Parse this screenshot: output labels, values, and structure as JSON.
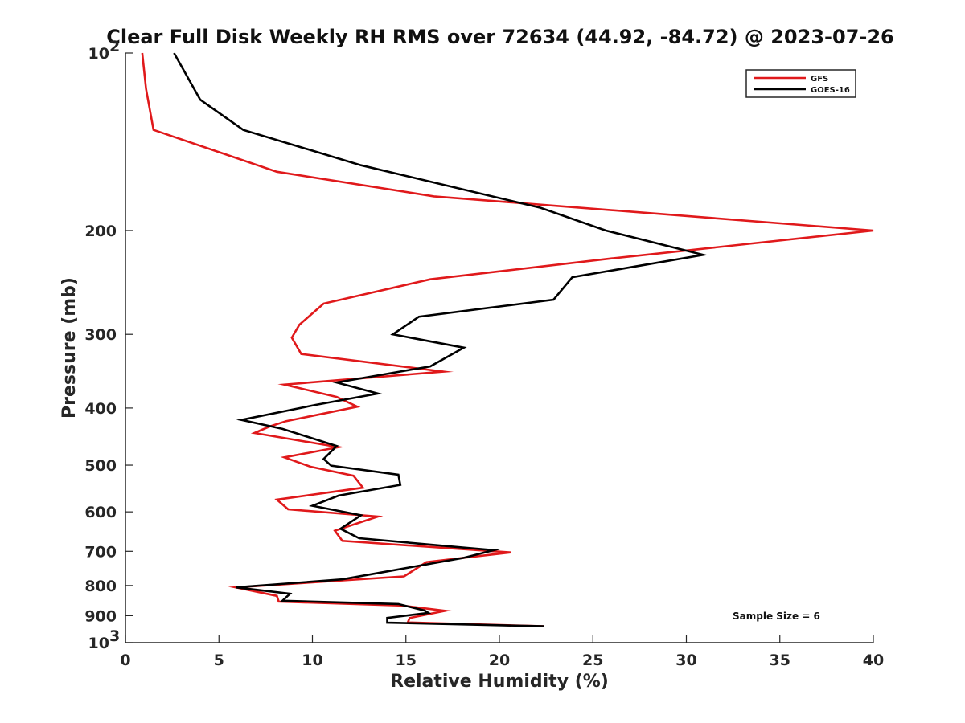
{
  "chart_data": {
    "type": "line",
    "title": "Clear Full Disk Weekly RH RMS over 72634 (44.92, -84.72) @ 2023-07-26",
    "xlabel": "Relative Humidity (%)",
    "ylabel": "Pressure (mb)",
    "xlim": [
      0,
      40
    ],
    "ylim": [
      100,
      1000
    ],
    "yscale": "log",
    "yreversed": true,
    "xticks": [
      0,
      5,
      10,
      15,
      20,
      25,
      30,
      35,
      40
    ],
    "xtick_labels": [
      "0",
      "5",
      "10",
      "15",
      "20",
      "25",
      "30",
      "35",
      "40"
    ],
    "yticks": [
      {
        "value": 100,
        "base": "10",
        "exp": "2"
      },
      {
        "value": 200,
        "base": "200",
        "exp": ""
      },
      {
        "value": 300,
        "base": "300",
        "exp": ""
      },
      {
        "value": 400,
        "base": "400",
        "exp": ""
      },
      {
        "value": 500,
        "base": "500",
        "exp": ""
      },
      {
        "value": 600,
        "base": "600",
        "exp": ""
      },
      {
        "value": 700,
        "base": "700",
        "exp": ""
      },
      {
        "value": 800,
        "base": "800",
        "exp": ""
      },
      {
        "value": 900,
        "base": "900",
        "exp": ""
      },
      {
        "value": 1000,
        "base": "10",
        "exp": "3"
      }
    ],
    "legend_position": "top-right",
    "series": [
      {
        "name": "GFS",
        "color": "#e0191b",
        "points": [
          [
            0.9,
            100
          ],
          [
            1.1,
            115
          ],
          [
            1.5,
            135
          ],
          [
            8.1,
            159
          ],
          [
            16.5,
            175
          ],
          [
            40.0,
            200
          ],
          [
            26.0,
            223
          ],
          [
            16.3,
            242
          ],
          [
            10.6,
            266
          ],
          [
            9.3,
            289
          ],
          [
            8.9,
            304
          ],
          [
            9.4,
            324
          ],
          [
            17.0,
            347
          ],
          [
            8.5,
            365
          ],
          [
            11.3,
            383
          ],
          [
            12.4,
            398
          ],
          [
            8.6,
            421
          ],
          [
            7.7,
            430
          ],
          [
            6.9,
            441
          ],
          [
            11.4,
            466
          ],
          [
            8.5,
            485
          ],
          [
            9.9,
            503
          ],
          [
            12.2,
            521
          ],
          [
            12.7,
            546
          ],
          [
            8.1,
            572
          ],
          [
            8.7,
            594
          ],
          [
            13.5,
            611
          ],
          [
            11.2,
            646
          ],
          [
            11.6,
            672
          ],
          [
            20.6,
            703
          ],
          [
            16.1,
            730
          ],
          [
            14.9,
            772
          ],
          [
            5.9,
            806
          ],
          [
            8.1,
            833
          ],
          [
            8.2,
            852
          ],
          [
            14.8,
            865
          ],
          [
            17.1,
            883
          ],
          [
            15.2,
            908
          ],
          [
            15.1,
            924
          ],
          [
            22.4,
            938
          ]
        ]
      },
      {
        "name": "GOES-16",
        "color": "#000000",
        "points": [
          [
            2.6,
            100
          ],
          [
            4.0,
            120
          ],
          [
            6.3,
            135
          ],
          [
            12.6,
            155
          ],
          [
            22.2,
            183
          ],
          [
            25.7,
            200
          ],
          [
            30.9,
            220
          ],
          [
            23.9,
            240
          ],
          [
            22.9,
            262
          ],
          [
            15.7,
            280
          ],
          [
            14.3,
            300
          ],
          [
            18.1,
            316
          ],
          [
            16.3,
            340
          ],
          [
            11.3,
            362
          ],
          [
            13.5,
            378
          ],
          [
            10.2,
            395
          ],
          [
            6.2,
            419
          ],
          [
            8.4,
            434
          ],
          [
            11.3,
            464
          ],
          [
            10.6,
            488
          ],
          [
            11.0,
            501
          ],
          [
            14.6,
            519
          ],
          [
            14.7,
            540
          ],
          [
            11.4,
            563
          ],
          [
            10.0,
            586
          ],
          [
            12.6,
            608
          ],
          [
            11.5,
            641
          ],
          [
            12.5,
            665
          ],
          [
            18.1,
            690
          ],
          [
            19.7,
            697
          ],
          [
            18.1,
            718
          ],
          [
            14.0,
            757
          ],
          [
            11.6,
            781
          ],
          [
            5.9,
            806
          ],
          [
            8.8,
            826
          ],
          [
            8.4,
            849
          ],
          [
            14.6,
            860
          ],
          [
            16.0,
            882
          ],
          [
            16.2,
            890
          ],
          [
            14.0,
            908
          ],
          [
            14.0,
            925
          ],
          [
            22.4,
            938
          ]
        ]
      }
    ],
    "annotation": "Sample Size = 6"
  }
}
